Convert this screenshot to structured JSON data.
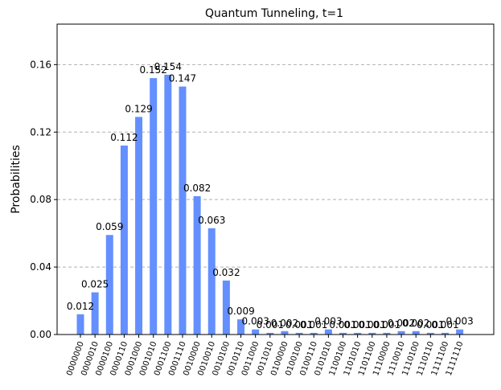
{
  "chart_data": {
    "type": "bar",
    "title": "Quantum Tunneling, t=1",
    "ylabel": "Probabilities",
    "xlabel": "",
    "ylim": [
      0,
      0.184
    ],
    "yticks": [
      0.0,
      0.04,
      0.08,
      0.12,
      0.16
    ],
    "ytick_labels": [
      "0.00",
      "0.04",
      "0.08",
      "0.12",
      "0.16"
    ],
    "grid": "y-dashed",
    "bar_color": "#648fff",
    "categories": [
      "0000000",
      "0000010",
      "0000100",
      "0000110",
      "0001000",
      "0001010",
      "0001100",
      "0001110",
      "0010000",
      "0010010",
      "0010100",
      "0010110",
      "0011000",
      "0011010",
      "0100000",
      "0100100",
      "0100110",
      "0101010",
      "1100100",
      "1101010",
      "1101100",
      "1110000",
      "1110010",
      "1110100",
      "1110110",
      "1111100",
      "1111110"
    ],
    "values": [
      0.012,
      0.025,
      0.059,
      0.112,
      0.129,
      0.152,
      0.154,
      0.147,
      0.082,
      0.063,
      0.032,
      0.009,
      0.003,
      0.001,
      0.002,
      0.001,
      0.001,
      0.003,
      0.001,
      0.001,
      0.001,
      0.001,
      0.002,
      0.002,
      0.001,
      0.001,
      0.003
    ],
    "value_labels": [
      "0.012",
      "0.025",
      "0.059",
      "0.112",
      "0.129",
      "0.152",
      "0.154",
      "0.147",
      "0.082",
      "0.063",
      "0.032",
      "0.009",
      "0.003",
      "0.001",
      "0.002",
      "0.001",
      "0.001",
      "0.003",
      "0.001",
      "0.001",
      "0.001",
      "0.001",
      "0.002",
      "0.002",
      "0.001",
      "0.001",
      "0.003"
    ]
  }
}
